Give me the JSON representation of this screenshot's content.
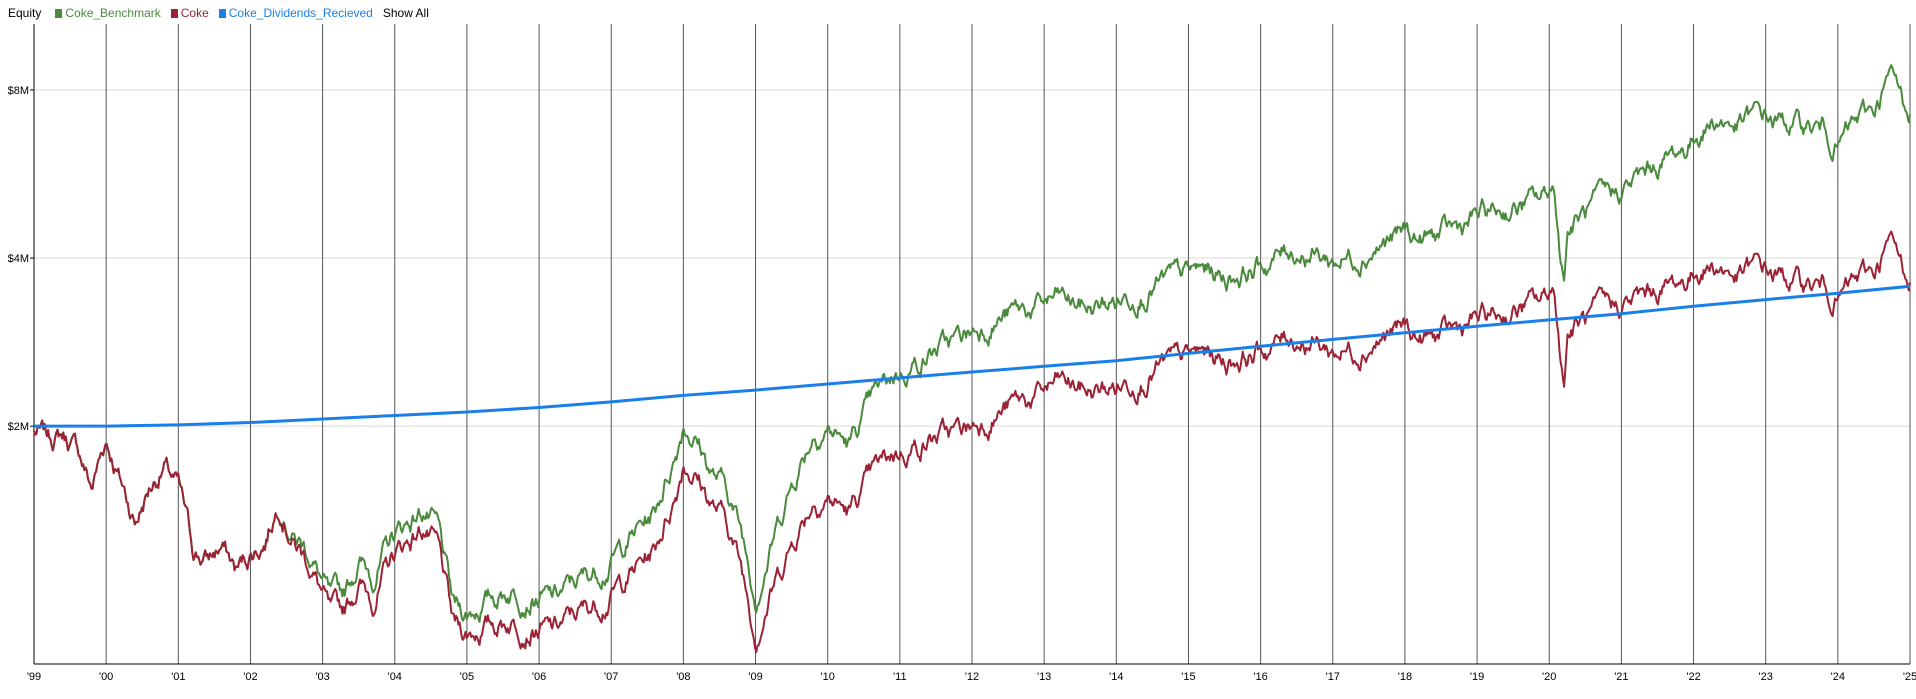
{
  "legend": {
    "title": "Equity",
    "show_all": "Show All"
  },
  "chart_data": {
    "type": "line",
    "title": "Equity",
    "xlabel": "",
    "ylabel": "",
    "x_unit": "year",
    "xlim": [
      1999.0,
      2025.0
    ],
    "ylim": [
      0.75,
      10.5
    ],
    "y_unit": "$M",
    "y_scale": "log",
    "grid": {
      "vertical": true,
      "horizontal": true
    },
    "legend_position": "top-left",
    "x_ticks": [
      {
        "x": 1999,
        "label": "'99"
      },
      {
        "x": 2000,
        "label": "'00"
      },
      {
        "x": 2001,
        "label": "'01"
      },
      {
        "x": 2002,
        "label": "'02"
      },
      {
        "x": 2003,
        "label": "'03"
      },
      {
        "x": 2004,
        "label": "'04"
      },
      {
        "x": 2005,
        "label": "'05"
      },
      {
        "x": 2006,
        "label": "'06"
      },
      {
        "x": 2007,
        "label": "'07"
      },
      {
        "x": 2008,
        "label": "'08"
      },
      {
        "x": 2009,
        "label": "'09"
      },
      {
        "x": 2010,
        "label": "'10"
      },
      {
        "x": 2011,
        "label": "'11"
      },
      {
        "x": 2012,
        "label": "'12"
      },
      {
        "x": 2013,
        "label": "'13"
      },
      {
        "x": 2014,
        "label": "'14"
      },
      {
        "x": 2015,
        "label": "'15"
      },
      {
        "x": 2016,
        "label": "'16"
      },
      {
        "x": 2017,
        "label": "'17"
      },
      {
        "x": 2018,
        "label": "'18"
      },
      {
        "x": 2019,
        "label": "'19"
      },
      {
        "x": 2020,
        "label": "'20"
      },
      {
        "x": 2021,
        "label": "'21"
      },
      {
        "x": 2022,
        "label": "'22"
      },
      {
        "x": 2023,
        "label": "'23"
      },
      {
        "x": 2024,
        "label": "'24"
      },
      {
        "x": 2025,
        "label": "'25"
      }
    ],
    "y_ticks": [
      {
        "y": 2,
        "label": "$2M"
      },
      {
        "y": 4,
        "label": "$4M"
      },
      {
        "y": 8,
        "label": "$8M"
      }
    ],
    "series": [
      {
        "name": "Coke_Benchmark",
        "color": "#4a8a3c",
        "x": [
          1999.0,
          1999.2,
          1999.4,
          1999.6,
          1999.8,
          2000.0,
          2000.2,
          2000.4,
          2000.6,
          2000.8,
          2001.0,
          2001.2,
          2001.4,
          2001.6,
          2001.8,
          2002.0,
          2002.2,
          2002.4,
          2002.6,
          2002.8,
          2003.0,
          2003.1,
          2003.3,
          2003.5,
          2003.7,
          2004.0,
          2004.2,
          2004.4,
          2004.6,
          2004.8,
          2005.0,
          2005.3,
          2005.6,
          2005.9,
          2006.2,
          2006.5,
          2006.8,
          2007.0,
          2007.3,
          2007.6,
          2007.9,
          2008.0,
          2008.2,
          2008.4,
          2008.6,
          2008.8,
          2009.0,
          2009.2,
          2009.4,
          2009.6,
          2009.8,
          2010.0,
          2010.3,
          2010.6,
          2010.9,
          2011.2,
          2011.5,
          2011.8,
          2012.0,
          2012.3,
          2012.6,
          2012.9,
          2013.2,
          2013.4,
          2013.7,
          2014.0,
          2014.3,
          2014.6,
          2014.9,
          2015.2,
          2015.5,
          2015.8,
          2016.1,
          2016.4,
          2016.7,
          2017.0,
          2017.3,
          2017.6,
          2017.9,
          2018.0,
          2018.2,
          2018.5,
          2018.8,
          2019.0,
          2019.3,
          2019.6,
          2019.9,
          2020.05,
          2020.15,
          2020.2,
          2020.25,
          2020.4,
          2020.7,
          2021.0,
          2021.3,
          2021.6,
          2021.9,
          2022.1,
          2022.3,
          2022.6,
          2022.9,
          2023.2,
          2023.5,
          2023.8,
          2024.0,
          2024.2,
          2024.5,
          2024.7,
          2024.8,
          2024.9,
          2025.0
        ],
        "values": [
          1.95,
          1.9,
          1.93,
          1.82,
          1.55,
          1.9,
          1.6,
          1.35,
          1.55,
          1.7,
          1.55,
          1.2,
          1.15,
          1.22,
          1.1,
          1.18,
          1.25,
          1.48,
          1.28,
          1.2,
          1.05,
          0.98,
          1.0,
          1.15,
          1.08,
          1.28,
          1.35,
          1.42,
          1.3,
          0.95,
          0.92,
          0.98,
          1.02,
          1.0,
          0.98,
          1.05,
          1.1,
          1.15,
          1.28,
          1.4,
          1.8,
          2.05,
          1.88,
          1.65,
          1.55,
          1.3,
          1.0,
          1.2,
          1.45,
          1.7,
          1.95,
          2.0,
          1.85,
          2.2,
          2.45,
          2.6,
          2.75,
          2.85,
          2.95,
          3.1,
          3.2,
          3.25,
          3.4,
          3.3,
          3.25,
          3.35,
          3.5,
          3.6,
          3.7,
          3.8,
          3.7,
          3.8,
          3.9,
          4.15,
          4.1,
          3.95,
          4.05,
          4.2,
          4.35,
          4.45,
          4.3,
          4.4,
          4.55,
          4.75,
          4.85,
          4.95,
          5.1,
          5.4,
          4.2,
          3.65,
          4.5,
          4.7,
          5.0,
          5.3,
          5.6,
          6.0,
          6.3,
          6.8,
          7.1,
          6.9,
          7.2,
          7.0,
          6.9,
          6.8,
          6.4,
          6.9,
          7.4,
          8.4,
          8.2,
          7.6,
          7.5
        ]
      },
      {
        "name": "Coke",
        "color": "#9b2335",
        "x": [
          1999.0,
          1999.2,
          1999.4,
          1999.6,
          1999.8,
          2000.0,
          2000.2,
          2000.4,
          2000.6,
          2000.8,
          2001.0,
          2001.2,
          2001.4,
          2001.6,
          2001.8,
          2002.0,
          2002.2,
          2002.4,
          2002.6,
          2002.8,
          2003.0,
          2003.1,
          2003.3,
          2003.5,
          2003.7,
          2004.0,
          2004.2,
          2004.4,
          2004.6,
          2004.8,
          2005.0,
          2005.3,
          2005.6,
          2005.9,
          2006.2,
          2006.5,
          2006.8,
          2007.0,
          2007.3,
          2007.6,
          2007.9,
          2008.0,
          2008.2,
          2008.4,
          2008.6,
          2008.8,
          2009.0,
          2009.2,
          2009.4,
          2009.6,
          2009.8,
          2010.0,
          2010.3,
          2010.6,
          2010.9,
          2011.2,
          2011.5,
          2011.8,
          2012.0,
          2012.3,
          2012.6,
          2012.9,
          2013.2,
          2013.4,
          2013.7,
          2014.0,
          2014.3,
          2014.6,
          2014.9,
          2015.2,
          2015.5,
          2015.8,
          2016.1,
          2016.4,
          2016.7,
          2017.0,
          2017.3,
          2017.6,
          2017.9,
          2018.0,
          2018.2,
          2018.5,
          2018.8,
          2019.0,
          2019.3,
          2019.6,
          2019.9,
          2020.05,
          2020.15,
          2020.2,
          2020.25,
          2020.4,
          2020.7,
          2021.0,
          2021.3,
          2021.6,
          2021.9,
          2022.1,
          2022.3,
          2022.6,
          2022.9,
          2023.2,
          2023.5,
          2023.8,
          2024.0,
          2024.2,
          2024.5,
          2024.7,
          2024.8,
          2024.9,
          2025.0
        ],
        "values": [
          1.95,
          1.9,
          1.93,
          1.82,
          1.55,
          1.9,
          1.6,
          1.35,
          1.55,
          1.7,
          1.55,
          1.2,
          1.15,
          1.22,
          1.1,
          1.18,
          1.25,
          1.48,
          1.25,
          1.15,
          1.0,
          0.92,
          0.93,
          1.05,
          0.98,
          1.18,
          1.25,
          1.32,
          1.2,
          0.88,
          0.85,
          0.88,
          0.9,
          0.88,
          0.86,
          0.92,
          0.96,
          1.0,
          1.1,
          1.2,
          1.52,
          1.75,
          1.62,
          1.45,
          1.35,
          1.12,
          0.85,
          1.0,
          1.15,
          1.32,
          1.48,
          1.5,
          1.4,
          1.62,
          1.78,
          1.85,
          1.92,
          1.95,
          2.0,
          2.1,
          2.2,
          2.25,
          2.4,
          2.35,
          2.3,
          2.35,
          2.45,
          2.55,
          2.62,
          2.7,
          2.62,
          2.68,
          2.75,
          2.9,
          2.85,
          2.72,
          2.75,
          2.85,
          2.95,
          3.0,
          2.85,
          2.9,
          3.0,
          3.1,
          3.15,
          3.25,
          3.35,
          3.55,
          2.8,
          2.35,
          2.95,
          3.05,
          3.2,
          3.3,
          3.4,
          3.55,
          3.65,
          3.85,
          3.9,
          3.7,
          3.85,
          3.7,
          3.6,
          3.55,
          3.4,
          3.6,
          3.8,
          4.25,
          4.1,
          3.8,
          3.75
        ]
      },
      {
        "name": "Coke_Dividends_Recieved",
        "color": "#1a7fe8",
        "x": [
          1999.0,
          2000.0,
          2001.0,
          2002.0,
          2003.0,
          2004.0,
          2005.0,
          2006.0,
          2007.0,
          2008.0,
          2009.0,
          2010.0,
          2011.0,
          2012.0,
          2013.0,
          2014.0,
          2015.0,
          2016.0,
          2017.0,
          2018.0,
          2019.0,
          2020.0,
          2021.0,
          2022.0,
          2023.0,
          2024.0,
          2025.0
        ],
        "values": [
          2.0,
          2.0,
          2.01,
          2.03,
          2.06,
          2.09,
          2.12,
          2.16,
          2.21,
          2.27,
          2.32,
          2.38,
          2.44,
          2.5,
          2.56,
          2.62,
          2.7,
          2.78,
          2.86,
          2.94,
          3.02,
          3.1,
          3.18,
          3.28,
          3.37,
          3.46,
          3.56
        ]
      }
    ]
  }
}
